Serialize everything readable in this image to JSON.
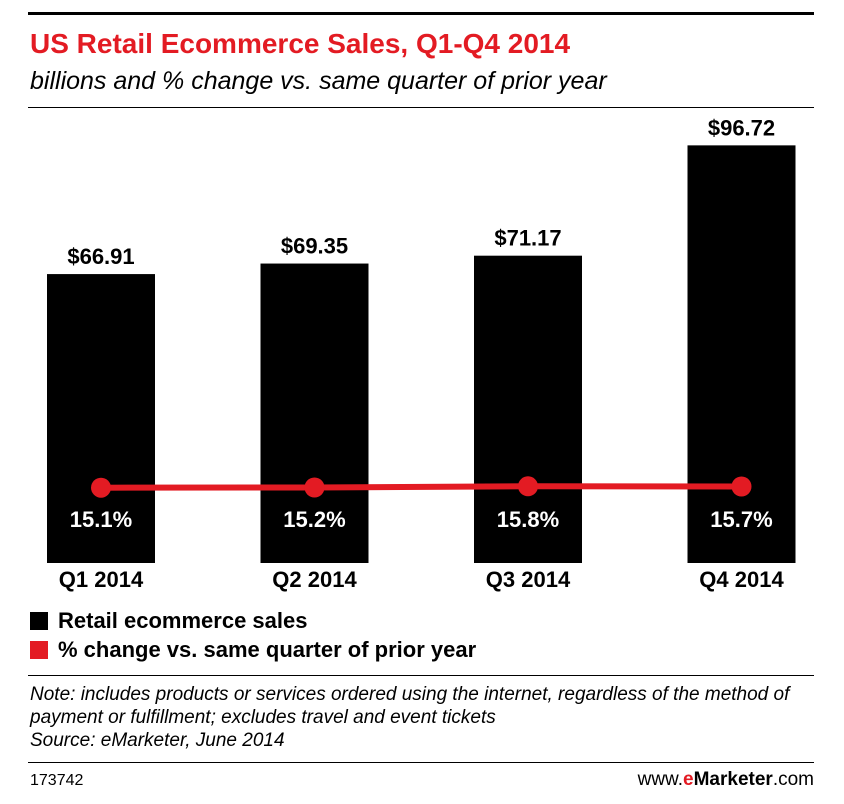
{
  "title": "US Retail Ecommerce Sales, Q1-Q4 2014",
  "subtitle": "billions and % change vs. same quarter of prior year",
  "chart_data": {
    "type": "bar",
    "categories": [
      "Q1 2014",
      "Q2 2014",
      "Q3 2014",
      "Q4 2014"
    ],
    "series": [
      {
        "name": "Retail ecommerce sales",
        "type": "bar",
        "values": [
          66.91,
          69.35,
          71.17,
          96.72
        ],
        "labels": [
          "$66.91",
          "$69.35",
          "$71.17",
          "$96.72"
        ],
        "color": "#000000"
      },
      {
        "name": "% change vs. same quarter of prior year",
        "type": "line",
        "values": [
          15.1,
          15.2,
          15.8,
          15.7
        ],
        "labels": [
          "15.1%",
          "15.2%",
          "15.8%",
          "15.7%"
        ],
        "color": "#e31b23"
      }
    ],
    "ylim": [
      0,
      100
    ],
    "grid": false,
    "legend_position": "bottom-left"
  },
  "note": "Note: includes products or services ordered using the internet, regardless of the method of payment or fulfillment; excludes travel and event tickets",
  "source": "Source: eMarketer, June 2014",
  "chart_id": "173742",
  "brand": {
    "prefix": "www.",
    "e": "e",
    "name": "Marketer",
    "suffix": ".com"
  }
}
